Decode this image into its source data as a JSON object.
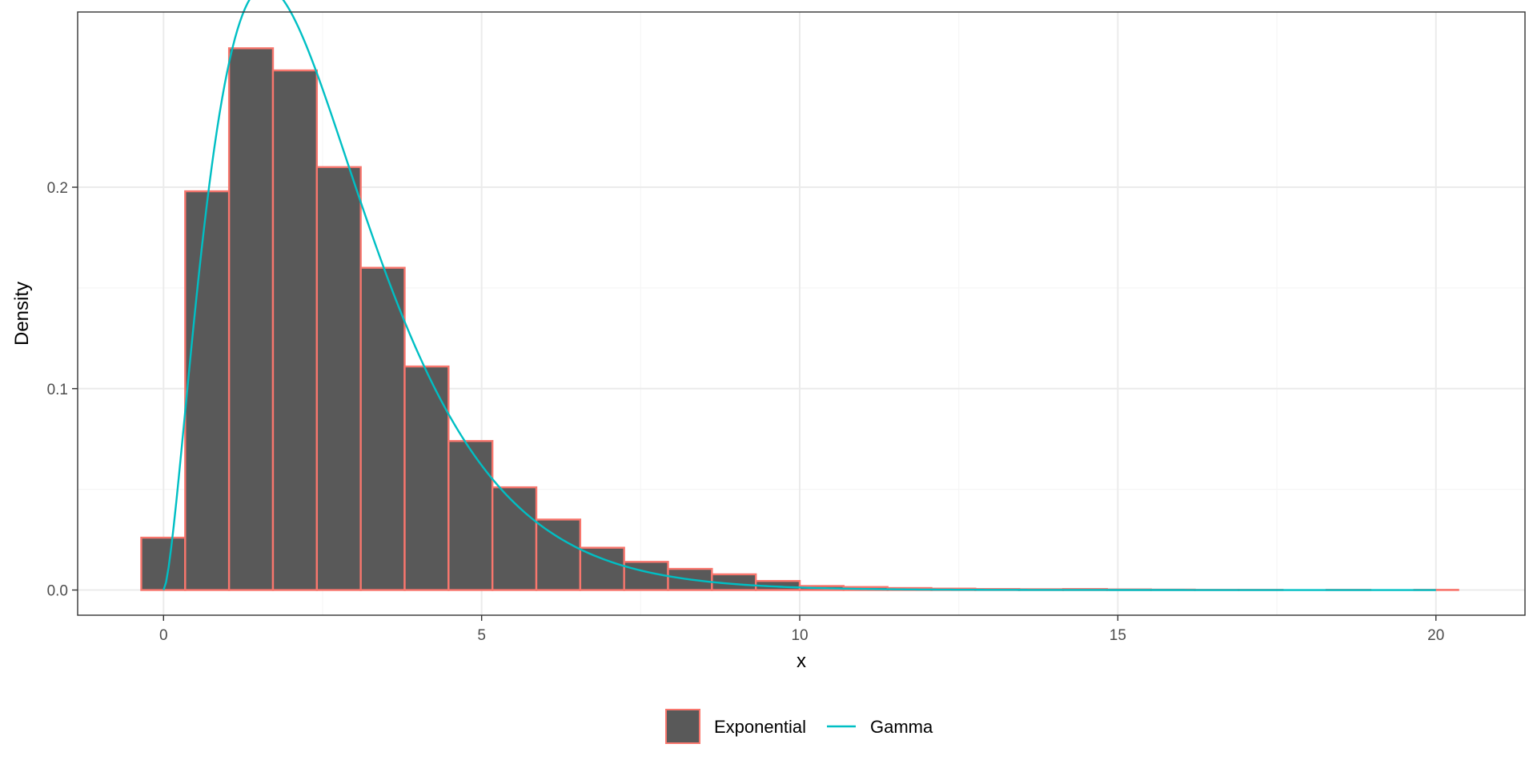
{
  "chart_data": {
    "type": "histogram",
    "xlabel": "x",
    "ylabel": "Density",
    "xlim": [
      -1.35,
      21.4
    ],
    "ylim": [
      -0.0125,
      0.287
    ],
    "x_ticks": [
      0,
      5,
      10,
      15,
      20
    ],
    "x_tick_labels": [
      "0",
      "5",
      "10",
      "15",
      "20"
    ],
    "y_ticks": [
      0.0,
      0.1,
      0.2
    ],
    "y_tick_labels": [
      "0.0",
      "0.1",
      "0.2"
    ],
    "grid": true,
    "legend_position": "bottom",
    "colors": {
      "bar_fill": "#595959",
      "bar_outline": "#F8766D",
      "line": "#00BFC4",
      "panel_border": "#333333",
      "grid_major": "#ebebeb",
      "grid_minor": "#f5f5f5"
    },
    "series": [
      {
        "name": "Exponential",
        "kind": "histogram",
        "bin_width": 0.69,
        "bins_left": [
          -0.35,
          0.34,
          1.03,
          1.72,
          2.41,
          3.1,
          3.79,
          4.48,
          5.17,
          5.86,
          6.55,
          7.24,
          7.93,
          8.62,
          9.31,
          10.0,
          10.69,
          11.38,
          12.07,
          12.76,
          13.45,
          14.14,
          14.83,
          15.52,
          16.21,
          16.9,
          17.59,
          18.28,
          18.97,
          19.66
        ],
        "values": [
          0.026,
          0.198,
          0.269,
          0.258,
          0.21,
          0.16,
          0.111,
          0.074,
          0.051,
          0.035,
          0.021,
          0.014,
          0.0105,
          0.0078,
          0.0045,
          0.002,
          0.0015,
          0.001,
          0.0007,
          0.0005,
          0.0004,
          0.0005,
          0.0003,
          0.0002,
          0.0001,
          0.0001,
          0.0,
          0.0001,
          0.0,
          0.0001
        ]
      },
      {
        "name": "Gamma",
        "kind": "density-line",
        "shape": 2.6,
        "rate": 1.0,
        "x_range": [
          0,
          20
        ]
      }
    ]
  }
}
